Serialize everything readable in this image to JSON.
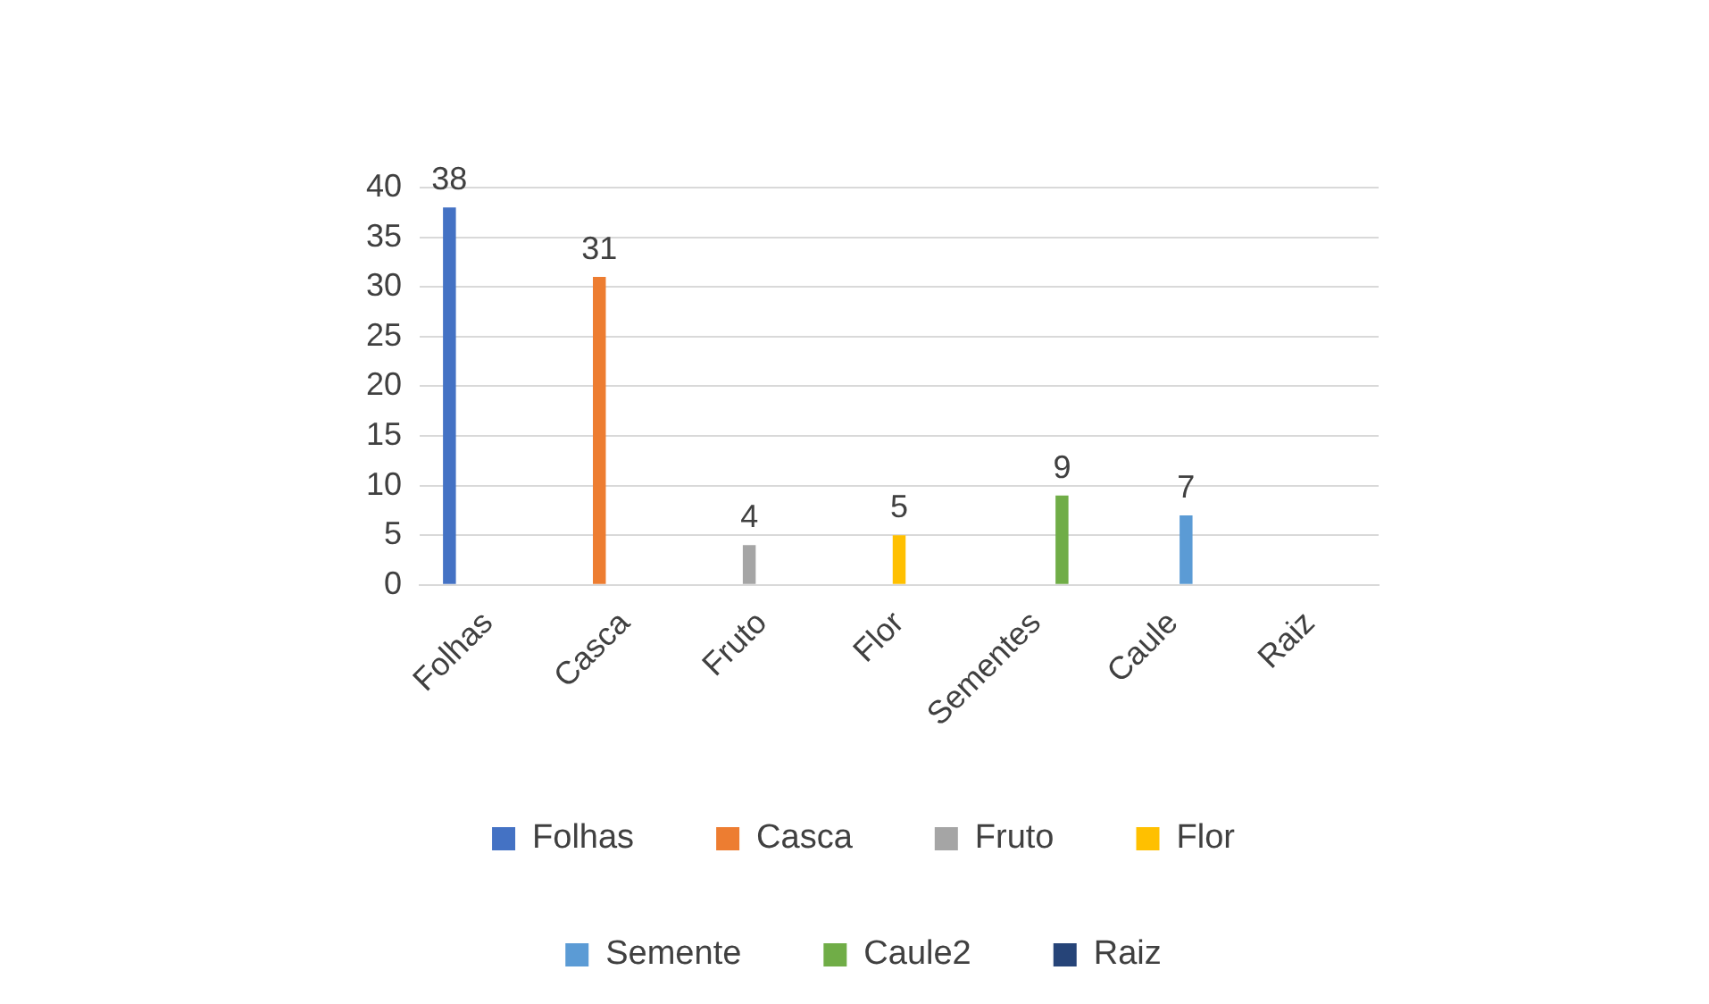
{
  "chart_data": {
    "type": "bar",
    "categories": [
      "Folhas",
      "Casca",
      "Fruto",
      "Flor",
      "Sementes",
      "Caule",
      "Raiz"
    ],
    "series": [
      {
        "name": "Folhas",
        "color": "#4472c4",
        "values": [
          38,
          null,
          null,
          null,
          null,
          null,
          null
        ]
      },
      {
        "name": "Casca",
        "color": "#ed7d31",
        "values": [
          null,
          31,
          null,
          null,
          null,
          null,
          null
        ]
      },
      {
        "name": "Fruto",
        "color": "#a5a5a5",
        "values": [
          null,
          null,
          4,
          null,
          null,
          null,
          null
        ]
      },
      {
        "name": "Flor",
        "color": "#ffc000",
        "values": [
          null,
          null,
          null,
          5,
          null,
          null,
          null
        ]
      },
      {
        "name": "Semente",
        "color": "#5b9bd5",
        "values": [
          null,
          null,
          null,
          null,
          null,
          7,
          null
        ]
      },
      {
        "name": "Caule2",
        "color": "#70ad47",
        "values": [
          null,
          null,
          null,
          null,
          9,
          null,
          null
        ]
      },
      {
        "name": "Raiz",
        "color": "#264478",
        "values": [
          null,
          null,
          null,
          null,
          null,
          null,
          null
        ]
      }
    ],
    "ylim": [
      0,
      40
    ],
    "yticks": [
      0,
      5,
      10,
      15,
      20,
      25,
      30,
      35,
      40
    ],
    "grid": "y",
    "legend": "bottom",
    "data_labels": true
  }
}
